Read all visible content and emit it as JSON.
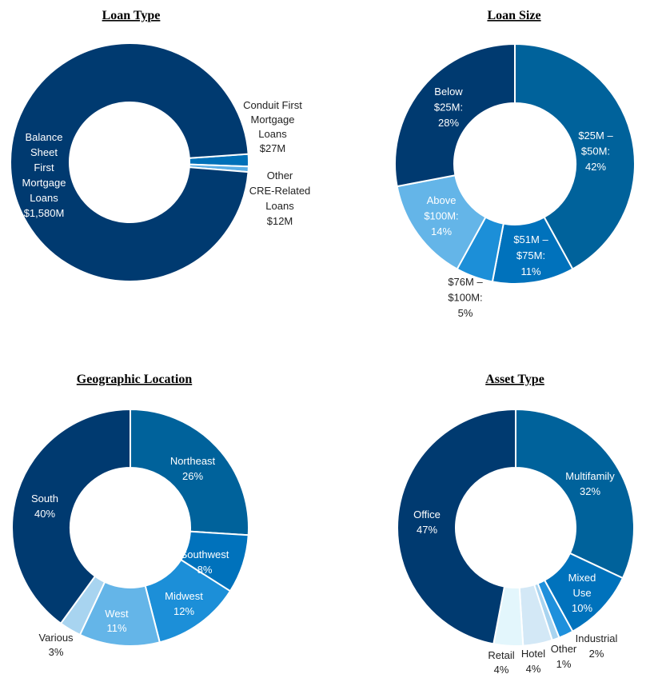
{
  "chart_data": [
    {
      "type": "pie",
      "donut": true,
      "title": "Loan Type",
      "categories": [
        "Conduit First Mortgage Loans",
        "Other CRE-Related Loans",
        "Balance Sheet First Mortgage Loans"
      ],
      "values": [
        27,
        12,
        1580
      ],
      "unit": "$M",
      "colors": [
        "#0070B8",
        "#5AAEE6",
        "#003A70"
      ],
      "data_labels": [
        [
          "Conduit First",
          "Mortgage",
          "Loans",
          "$27M"
        ],
        [
          "Other",
          "CRE-Related",
          "Loans",
          "$12M"
        ],
        [
          "Balance",
          "Sheet",
          "First",
          "Mortgage",
          "Loans",
          "$1,580M"
        ]
      ]
    },
    {
      "type": "pie",
      "donut": true,
      "title": "Loan Size",
      "categories": [
        "$25M – $50M",
        "$51M – $75M",
        "$76M – $100M",
        "Above $100M",
        "Below $25M"
      ],
      "values": [
        42,
        11,
        5,
        14,
        28
      ],
      "unit": "%",
      "colors": [
        "#00629B",
        "#0072BC",
        "#1C8FD8",
        "#64B5E8",
        "#003A70"
      ],
      "data_labels": [
        [
          "$25M –",
          "$50M:",
          "42%"
        ],
        [
          "$51M –",
          "$75M:",
          "11%"
        ],
        [
          "$76M –",
          "$100M:",
          "5%"
        ],
        [
          "Above",
          "$100M:",
          "14%"
        ],
        [
          "Below",
          "$25M:",
          "28%"
        ]
      ]
    },
    {
      "type": "pie",
      "donut": true,
      "title": "Geographic Location",
      "categories": [
        "Northeast",
        "Southwest",
        "Midwest",
        "West",
        "Various",
        "South"
      ],
      "values": [
        26,
        8,
        12,
        11,
        3,
        40
      ],
      "unit": "%",
      "colors": [
        "#00629B",
        "#0072BC",
        "#1C8FD8",
        "#64B5E8",
        "#A8D4F0",
        "#003A70"
      ],
      "data_labels": [
        [
          "Northeast",
          "26%"
        ],
        [
          "Southwest",
          "8%"
        ],
        [
          "Midwest",
          "12%"
        ],
        [
          "West",
          "11%"
        ],
        [
          "Various",
          "3%"
        ],
        [
          "South",
          "40%"
        ]
      ]
    },
    {
      "type": "pie",
      "donut": true,
      "title": "Asset Type",
      "categories": [
        "Multifamily",
        "Mixed Use",
        "Industrial",
        "Other",
        "Hotel",
        "Retail",
        "Office"
      ],
      "values": [
        32,
        10,
        2,
        1,
        4,
        4,
        47
      ],
      "unit": "%",
      "colors": [
        "#00629B",
        "#0072BC",
        "#1E90DC",
        "#A8D4F0",
        "#D3E8F6",
        "#E3F6FC",
        "#003A70"
      ],
      "data_labels": [
        [
          "Multifamily",
          "32%"
        ],
        [
          "Mixed",
          "Use",
          "10%"
        ],
        [
          "Industrial",
          "2%"
        ],
        [
          "Other",
          "1%"
        ],
        [
          "Hotel",
          "4%"
        ],
        [
          "Retail",
          "4%"
        ],
        [
          "Office",
          "47%"
        ]
      ]
    }
  ]
}
